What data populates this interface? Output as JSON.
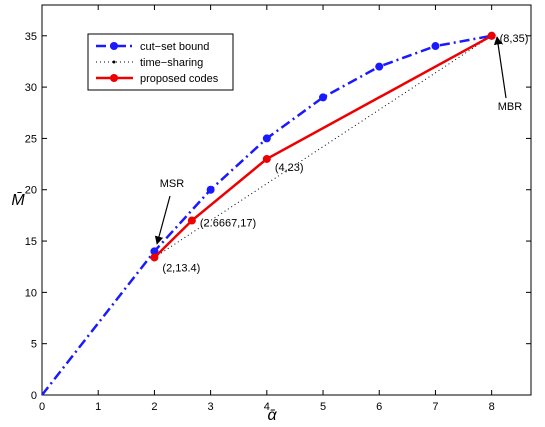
{
  "chart_data": {
    "type": "line",
    "xlabel": "ᾱ",
    "ylabel": "M̄",
    "xlim": [
      0,
      8.7
    ],
    "ylim": [
      0,
      38
    ],
    "xticks": [
      "0",
      "1",
      "2",
      "3",
      "4",
      "5",
      "6",
      "7",
      "8"
    ],
    "yticks": [
      "0",
      "5",
      "10",
      "15",
      "20",
      "25",
      "30",
      "35"
    ],
    "grid": false,
    "legend_position": "top-left",
    "series": [
      {
        "name": "cut−set bound",
        "color": "#1a1aff",
        "style": "dashdot",
        "marker": "circle",
        "line_only": [
          [
            0,
            0
          ]
        ],
        "points": [
          [
            2,
            14
          ],
          [
            3,
            20
          ],
          [
            4,
            25
          ],
          [
            5,
            29
          ],
          [
            6,
            32
          ],
          [
            7,
            34
          ],
          [
            8,
            35
          ]
        ]
      },
      {
        "name": "time−sharing",
        "color": "#000000",
        "style": "dotted",
        "marker": "dot",
        "points": [
          [
            2,
            13.4
          ],
          [
            8,
            35
          ]
        ]
      },
      {
        "name": "proposed codes",
        "color": "#ee0000",
        "style": "solid",
        "marker": "circle",
        "points": [
          [
            2,
            13.4
          ],
          [
            2.6667,
            17
          ],
          [
            4,
            23
          ],
          [
            8,
            35
          ]
        ]
      }
    ],
    "data_labels": [
      {
        "text": "(2,13.4)",
        "x": 2,
        "y": 13.4
      },
      {
        "text": "(2.6667,17)",
        "x": 2.6667,
        "y": 17
      },
      {
        "text": "(4,23)",
        "x": 4,
        "y": 23
      },
      {
        "text": "(8,35)",
        "x": 8,
        "y": 35
      }
    ],
    "annotations": [
      {
        "text": "MSR",
        "x": 2,
        "y": 13.4
      },
      {
        "text": "MBR",
        "x": 8,
        "y": 35
      }
    ]
  }
}
